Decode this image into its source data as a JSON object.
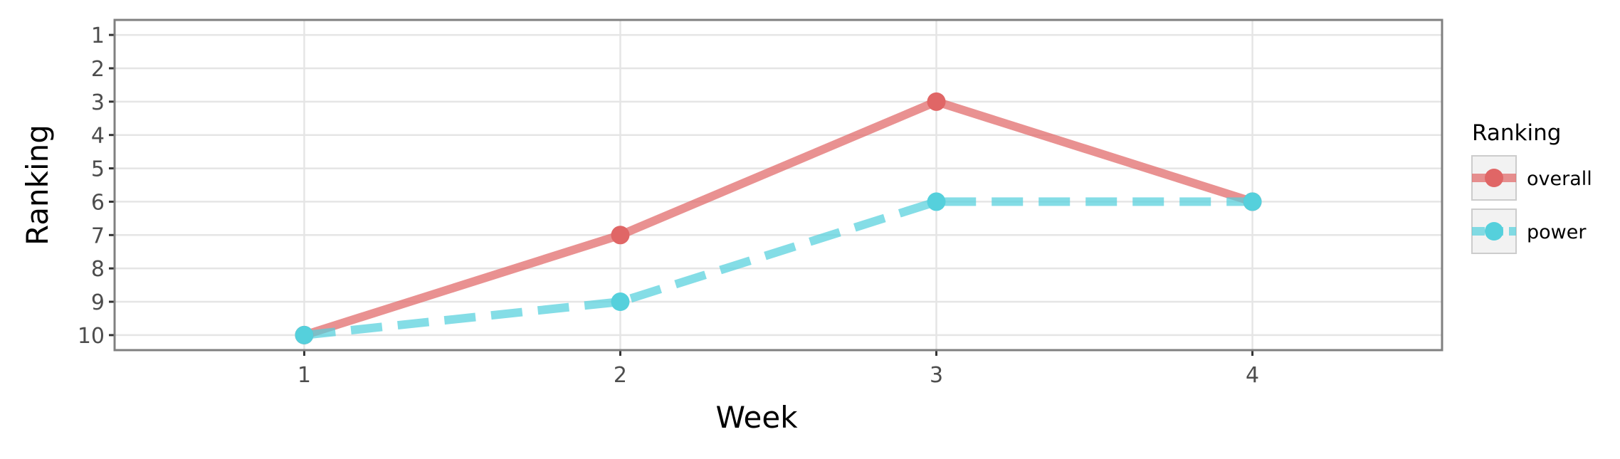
{
  "chart_data": {
    "type": "line",
    "xlabel": "Week",
    "ylabel": "Ranking",
    "x": [
      1,
      2,
      3,
      4
    ],
    "xlim": [
      0.4,
      4.6
    ],
    "ylim": [
      10.45,
      0.55
    ],
    "y_reversed": true,
    "x_ticks": [
      "1",
      "2",
      "3",
      "4"
    ],
    "y_ticks": [
      "1",
      "2",
      "3",
      "4",
      "5",
      "6",
      "7",
      "8",
      "9",
      "10"
    ],
    "grid": true,
    "legend": {
      "title": "Ranking",
      "placement": "right"
    },
    "series": [
      {
        "name": "overall",
        "values": [
          10,
          7,
          3,
          6
        ],
        "color": "#E06666",
        "line_style": "solid"
      },
      {
        "name": "power",
        "values": [
          10,
          9,
          6,
          6
        ],
        "color": "#55D0DC",
        "line_style": "dashed"
      }
    ]
  }
}
